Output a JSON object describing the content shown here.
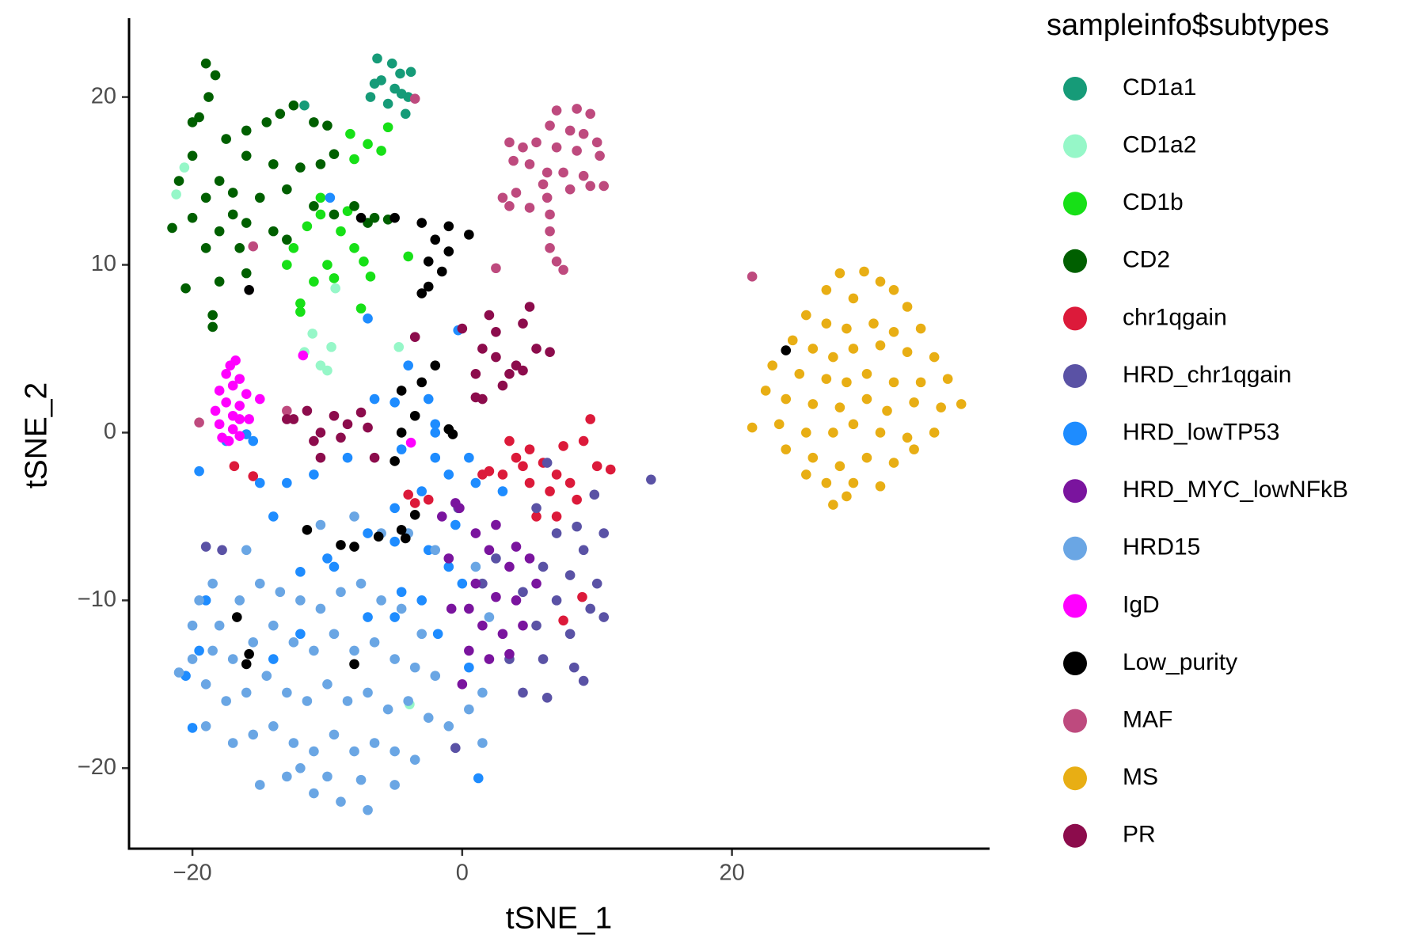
{
  "chart_data": {
    "type": "scatter",
    "xlabel": "tSNE_1",
    "ylabel": "tSNE_2",
    "legend_title": "sampleinfo$subtypes",
    "xlim": [
      -24.7,
      39.1
    ],
    "ylim": [
      -24.8,
      24.7
    ],
    "xticks": [
      {
        "value": -20,
        "label": "−20"
      },
      0,
      20
    ],
    "yticks": [
      {
        "value": -20,
        "label": "−20"
      },
      {
        "value": -10,
        "label": "−10"
      },
      0,
      10,
      20
    ],
    "grid": false,
    "legend": "right",
    "series": [
      {
        "name": "CD1a1",
        "color": "#169b78",
        "x": [
          -6.3,
          -6,
          -5,
          -4.6,
          -4,
          -5.5,
          -6.5,
          -4.2,
          -3.8,
          -6.8,
          -5.2,
          -4.5,
          -11.7
        ],
        "y": [
          22.3,
          21,
          20.5,
          21.4,
          20,
          19.6,
          20.8,
          19,
          21.5,
          20,
          22,
          20.2,
          19.5
        ]
      },
      {
        "name": "CD1a2",
        "color": "#96f7c8",
        "x": [
          -20.6,
          -21.2,
          -11.1,
          -11.7,
          -9.7,
          -10.5,
          -4.7,
          -9.4,
          -3.9,
          -10
        ],
        "y": [
          15.8,
          14.2,
          5.9,
          4.8,
          5.1,
          4,
          5.1,
          8.6,
          -16.2,
          3.7
        ]
      },
      {
        "name": "CD1b",
        "color": "#17e017",
        "x": [
          -8.3,
          -7,
          -6,
          -5.5,
          -8,
          -10.5,
          -11.5,
          -9,
          -8,
          -10,
          -9.5,
          -11,
          -12.5,
          -7.3,
          -6.8,
          -12,
          -12,
          -7.5,
          -10.5,
          -4,
          -8.5,
          -13
        ],
        "y": [
          17.8,
          17.2,
          16.8,
          18.2,
          16.3,
          14,
          12.3,
          12,
          11,
          10,
          9.2,
          9,
          11,
          10.2,
          9.3,
          7.7,
          7.2,
          7.4,
          13,
          10.5,
          13.2,
          10
        ]
      },
      {
        "name": "CD2",
        "color": "#005f00",
        "x": [
          -19,
          -18.3,
          -18.8,
          -19.5,
          -20,
          -17.5,
          -16,
          -14.5,
          -13.5,
          -12.5,
          -11,
          -10,
          -16,
          -14,
          -12,
          -10.5,
          -9.5,
          -18,
          -20,
          -21,
          -19,
          -17,
          -15,
          -13,
          -11,
          -9.5,
          -8,
          -7,
          -21.5,
          -20,
          -18,
          -16,
          -14,
          -19,
          -16.5,
          -13,
          -20.5,
          -18,
          -16,
          -18.5,
          -18.5,
          -5.5,
          -6.5,
          -17
        ],
        "y": [
          22,
          21.3,
          20,
          18.8,
          18.5,
          17.5,
          18,
          18.5,
          19,
          19.5,
          18.5,
          18.3,
          16.5,
          16,
          15.8,
          16,
          16.6,
          15,
          16.5,
          15,
          14,
          14.3,
          14,
          14.5,
          13.5,
          13,
          13.5,
          12.5,
          12.2,
          12.8,
          12,
          12.5,
          12,
          11,
          11,
          11.5,
          8.6,
          9,
          9.5,
          7,
          6.3,
          12.7,
          12.8,
          13
        ]
      },
      {
        "name": "chr1qgain",
        "color": "#dc1a3a",
        "x": [
          3.5,
          5,
          6,
          7,
          8,
          4.5,
          6.5,
          8.5,
          5.5,
          7,
          9.5,
          9,
          10,
          11,
          4,
          5,
          7.5,
          3,
          2,
          1.5,
          -3.5,
          -4,
          -2.5,
          -15.5,
          -16.9,
          8.9,
          7.5
        ],
        "y": [
          -0.5,
          -1,
          -1.8,
          -2.5,
          -3,
          -2,
          -3.5,
          -4,
          -5,
          -5,
          0.8,
          -0.5,
          -2,
          -2.2,
          -1.5,
          -3,
          -0.8,
          -2.5,
          -2.3,
          -2.5,
          -4.2,
          -3.7,
          -4,
          -2.6,
          -2,
          -9.8,
          -11.2
        ]
      },
      {
        "name": "HRD_chr1qgain",
        "color": "#5a52a5",
        "x": [
          6.3,
          5.5,
          8.5,
          7,
          9,
          10.5,
          6,
          8,
          10,
          4.5,
          7,
          9.5,
          5.5,
          8,
          10.5,
          3.5,
          6,
          8.3,
          4.5,
          6.3,
          14,
          9.8,
          2.5,
          1.5,
          -0.5,
          -19,
          -17.8,
          -0.3,
          9
        ],
        "y": [
          -1.8,
          -4.5,
          -5.6,
          -6,
          -7,
          -6,
          -8,
          -8.5,
          -9,
          -9.5,
          -10,
          -10.5,
          -11.5,
          -12,
          -11,
          -13.5,
          -13.5,
          -14,
          -15.5,
          -15.8,
          -2.8,
          -3.7,
          -7.5,
          -9,
          -18.8,
          -6.8,
          -7,
          -4.5,
          -14.8
        ]
      },
      {
        "name": "HRD_lowTP53",
        "color": "#1e8cff",
        "x": [
          -9.8,
          -7,
          -0.3,
          -4,
          -6.5,
          -5,
          -2.5,
          -2,
          -2,
          -4.5,
          -1,
          0.5,
          1,
          -3,
          -5,
          -7,
          -9.5,
          -12,
          -10,
          -5,
          -2.5,
          -1,
          -3,
          -1.8,
          -5,
          -4.5,
          -14,
          -15,
          -17.5,
          -15.5,
          -19.5,
          -16,
          -13,
          -11,
          -8.5,
          -19.5,
          -20,
          -14,
          -12,
          -7,
          0.5,
          1.2,
          -2,
          -0.5,
          3,
          -20.5,
          -19,
          0
        ],
        "y": [
          14,
          6.8,
          6.1,
          4,
          2,
          1.8,
          2,
          0.5,
          -1.5,
          -1,
          -2.5,
          -1.5,
          -3,
          -3.5,
          -4.5,
          -6,
          -8,
          -8.3,
          -7.5,
          -6.5,
          -7,
          -8,
          -10,
          -12,
          -11,
          -9.5,
          -5,
          -3,
          -0.5,
          -0.5,
          -2.3,
          -0.1,
          -3,
          -2.5,
          -1.5,
          -13,
          -17.6,
          -13.5,
          -12,
          -11,
          -14,
          -20.6,
          0,
          -5.5,
          -3.5,
          -14.5,
          -10,
          -9
        ]
      },
      {
        "name": "HRD_MYC_lowNFkB",
        "color": "#7a149e",
        "x": [
          1,
          2,
          4,
          3.5,
          1,
          2.5,
          4,
          0.5,
          1.5,
          3,
          4.5,
          0.5,
          2,
          3.5,
          0,
          -0.5,
          -0.2,
          -1.5,
          5,
          5.5,
          -1,
          -0.8,
          2.5
        ],
        "y": [
          -6,
          -7,
          -6.8,
          -8,
          -9,
          -9.8,
          -10,
          -10.5,
          -11.5,
          -12,
          -11.5,
          -13,
          -13.5,
          -13.2,
          -15,
          -4.2,
          -4.5,
          -5,
          -7.5,
          -9,
          -7.5,
          -10.5,
          -5.5
        ]
      },
      {
        "name": "HRD15",
        "color": "#6aa6e4",
        "x": [
          -19.5,
          -18,
          -16.5,
          -15,
          -13.5,
          -12,
          -10.5,
          -9,
          -7.5,
          -6,
          -4.5,
          -3,
          -18.5,
          -17,
          -15.5,
          -14,
          -12.5,
          -11,
          -9.5,
          -8,
          -6.5,
          -5,
          -3.5,
          -2,
          -21,
          -19,
          -17.5,
          -16,
          -14.5,
          -13,
          -11.5,
          -10,
          -8.5,
          -7,
          -5.5,
          -4,
          -2.5,
          -19,
          -17,
          -15.5,
          -14,
          -12.5,
          -11,
          -9.5,
          -8,
          -6.5,
          -5,
          -3.5,
          -1,
          0.5,
          1.5,
          -15,
          -13,
          -11,
          -9,
          -7,
          -5,
          -10,
          -12,
          -7.5,
          -8,
          -10.5,
          -6,
          -4,
          -2,
          1,
          2,
          -20,
          -16,
          -18.5,
          1.5,
          -20
        ],
        "y": [
          -10,
          -11.5,
          -10,
          -9,
          -9.5,
          -10,
          -10.5,
          -9.5,
          -9,
          -10,
          -10.5,
          -12,
          -13,
          -13.5,
          -12.5,
          -11.5,
          -12.5,
          -13,
          -12,
          -13,
          -12.5,
          -13.5,
          -14,
          -14.5,
          -14.3,
          -15,
          -16,
          -15.5,
          -14.5,
          -15.5,
          -16,
          -15,
          -16,
          -15.5,
          -16.5,
          -16,
          -17,
          -17.5,
          -18.5,
          -18,
          -17.5,
          -18.5,
          -19,
          -18,
          -19,
          -18.5,
          -19,
          -19.5,
          -17.5,
          -16.5,
          -15.5,
          -21,
          -20.5,
          -21.5,
          -22,
          -22.5,
          -21,
          -20.5,
          -20,
          -20.7,
          -5,
          -5.5,
          -6,
          -6,
          -7,
          -8,
          -11,
          -13.5,
          -7,
          -9,
          -18.5,
          -11.5
        ]
      },
      {
        "name": "IgD",
        "color": "#ff00ff",
        "x": [
          -16.8,
          -17.2,
          -17.5,
          -16.5,
          -17,
          -18,
          -16,
          -15,
          -17.5,
          -16.5,
          -18.3,
          -17,
          -18,
          -17,
          -16.5,
          -17.8,
          -17.3,
          -15.8,
          -16.5,
          -11.8,
          -3.8
        ],
        "y": [
          4.3,
          4,
          3.5,
          3.2,
          2.8,
          2.5,
          2.3,
          2,
          1.8,
          1.6,
          1.3,
          1,
          0.5,
          0.2,
          -0.2,
          -0.3,
          -0.5,
          0.8,
          0.8,
          4.6,
          -0.6
        ]
      },
      {
        "name": "Low_purity",
        "color": "#000000",
        "x": [
          -7.5,
          -5,
          -3,
          -1,
          0.5,
          -2,
          -1,
          -2.5,
          -1.5,
          -2.5,
          -3,
          -15.8,
          -2,
          -4.5,
          -3,
          -3.5,
          -4.5,
          -5,
          -1,
          -11.5,
          -9,
          -8,
          -6.2,
          -4.5,
          -4.2,
          -3.5,
          -16.7,
          -15.8,
          -16,
          -8,
          24,
          -0.7
        ],
        "y": [
          12.8,
          12.8,
          12.5,
          12.3,
          11.8,
          11.5,
          10.8,
          10.2,
          9.6,
          8.7,
          8.3,
          8.5,
          4,
          2.5,
          3,
          1,
          0,
          -1.7,
          0.2,
          -5.8,
          -6.7,
          -6.8,
          -6.2,
          -5.8,
          -6.3,
          -4.9,
          -11,
          -13.2,
          -13.8,
          -13.8,
          4.9,
          -0.1
        ]
      },
      {
        "name": "MAF",
        "color": "#be4a7e",
        "x": [
          7,
          8.5,
          9.5,
          6.5,
          8,
          9,
          10,
          5.5,
          7,
          8.5,
          10.2,
          3.5,
          4.5,
          5,
          6.3,
          7.5,
          9,
          10.5,
          4,
          6,
          8,
          9.5,
          3.5,
          5,
          6.5,
          3,
          6.5,
          6.5,
          3.8,
          7,
          7.5,
          6.3,
          21.5,
          2.5,
          -3.5,
          -19.5,
          -13,
          -15.5
        ],
        "y": [
          19.2,
          19.3,
          19,
          18.3,
          18,
          17.8,
          17.3,
          17.3,
          17,
          16.8,
          16.5,
          17.3,
          17,
          16,
          15.5,
          15.5,
          15.3,
          14.7,
          14.3,
          14.8,
          14.5,
          14.7,
          13.5,
          13.4,
          13,
          14,
          12,
          11,
          16.2,
          10.2,
          9.7,
          14,
          9.3,
          9.8,
          19.9,
          0.6,
          1.3,
          11.1
        ]
      },
      {
        "name": "MS",
        "color": "#e8ae14",
        "x": [
          28,
          29.8,
          31,
          27,
          29,
          32,
          33,
          25.5,
          27,
          28.5,
          30.5,
          32,
          34,
          24.5,
          26,
          27.5,
          29,
          31,
          33,
          35,
          23,
          25,
          27,
          28.5,
          30,
          32,
          34,
          36,
          22.5,
          24,
          26,
          28,
          30,
          31.5,
          33.5,
          35.5,
          37,
          21.5,
          23.5,
          25.5,
          27.5,
          29,
          31,
          33,
          35,
          24,
          26,
          28,
          30,
          32,
          33.5,
          25.5,
          27,
          29,
          31,
          27.5,
          28.5
        ],
        "y": [
          9.5,
          9.6,
          9,
          8.5,
          8,
          8.5,
          7.5,
          7,
          6.5,
          6.2,
          6.5,
          6,
          6.2,
          5.5,
          5,
          4.5,
          5,
          5.2,
          4.8,
          4.5,
          4,
          3.5,
          3.2,
          3,
          3.5,
          3,
          3,
          3.2,
          2.5,
          2,
          1.7,
          1.5,
          2,
          1.3,
          1.8,
          1.5,
          1.7,
          0.3,
          0.5,
          0,
          0,
          0.5,
          0,
          -0.3,
          0,
          -1,
          -1.5,
          -2,
          -1.5,
          -1.8,
          -1,
          -2.5,
          -3,
          -3,
          -3.2,
          -4.3,
          -3.8
        ]
      },
      {
        "name": "PR",
        "color": "#8c0c4c",
        "x": [
          2,
          2.5,
          4.5,
          5,
          1.5,
          2.5,
          4,
          5.5,
          6.5,
          3.5,
          4.5,
          3,
          1,
          0,
          1,
          1.5,
          -3.5,
          -7.5,
          -8.5,
          -9.5,
          -10.5,
          -12.5,
          -11.5,
          -9,
          -11,
          -7,
          -6.5,
          -10.5,
          -13
        ],
        "y": [
          7,
          6,
          6.5,
          7.5,
          5,
          4.5,
          4,
          5,
          4.8,
          3.5,
          3.7,
          2.8,
          3.5,
          6.2,
          2.1,
          2,
          5.7,
          1.2,
          0.5,
          1,
          0,
          0.8,
          1.3,
          -0.3,
          -0.5,
          0.3,
          -1.5,
          -1.5,
          0.8
        ]
      }
    ]
  }
}
